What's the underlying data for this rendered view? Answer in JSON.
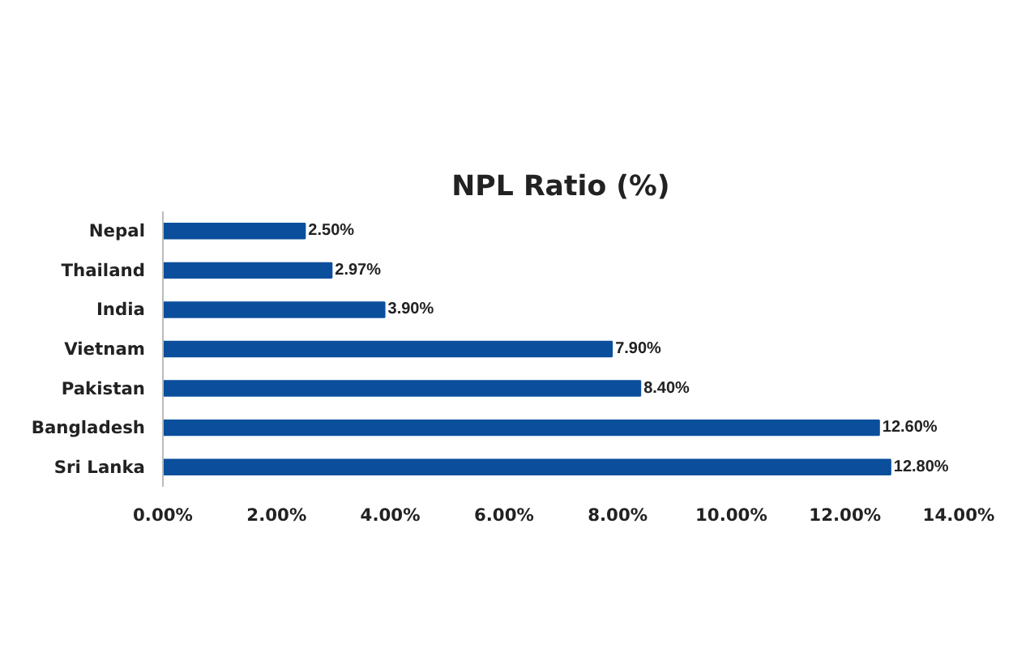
{
  "chart_data": {
    "type": "bar",
    "orientation": "horizontal",
    "title": "NPL Ratio (%)",
    "categories": [
      "Nepal",
      "Thailand",
      "India",
      "Vietnam",
      "Pakistan",
      "Bangladesh",
      "Sri Lanka"
    ],
    "values": [
      2.5,
      2.97,
      3.9,
      7.9,
      8.4,
      12.6,
      12.8
    ],
    "value_labels": [
      "2.50%",
      "2.97%",
      "3.90%",
      "7.90%",
      "8.40%",
      "12.60%",
      "12.80%"
    ],
    "color": "#0b4f9c",
    "xlim": [
      0,
      14
    ],
    "xticks": [
      {
        "value": 0,
        "label": "0.00%"
      },
      {
        "value": 2,
        "label": "2.00%"
      },
      {
        "value": 4,
        "label": "4.00%"
      },
      {
        "value": 6,
        "label": "6.00%"
      },
      {
        "value": 8,
        "label": "8.00%"
      },
      {
        "value": 10,
        "label": "10.00%"
      },
      {
        "value": 12,
        "label": "12.00%"
      },
      {
        "value": 14,
        "label": "14.00%"
      }
    ],
    "grid": false
  }
}
